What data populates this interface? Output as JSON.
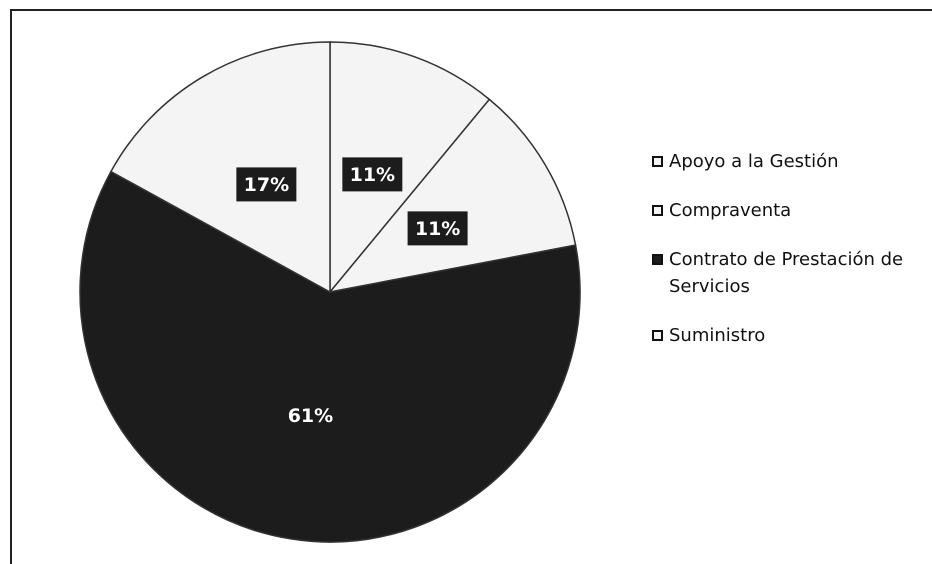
{
  "chart_data": {
    "type": "pie",
    "categories": [
      "Apoyo a la Gestión",
      "Compraventa",
      "Contrato de Prestación de Servicios",
      "Suministro"
    ],
    "values": [
      11,
      11,
      61,
      17
    ],
    "value_labels": [
      "11%",
      "11%",
      "61%",
      "17%"
    ],
    "colors": [
      "#f4f4f4",
      "#f4f4f4",
      "#1c1c1c",
      "#f4f4f4"
    ],
    "legend": "right"
  }
}
